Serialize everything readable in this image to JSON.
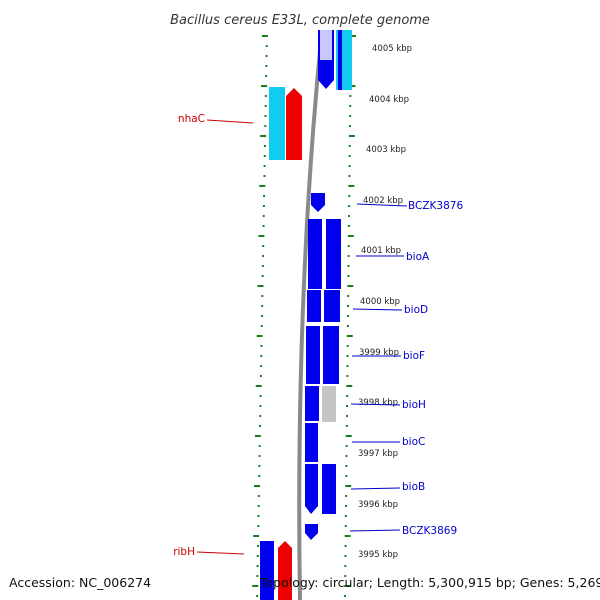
{
  "title": "Bacillus cereus E33L, complete genome",
  "footer": {
    "accession": "Accession: NC_006274",
    "summary": "Topology: circular; Length: 5,300,915 bp; Genes: 5,269"
  },
  "colors": {
    "backbone": "#8a8a8a",
    "tick": "#1a7f1a",
    "blue_gene": "#0000ee",
    "cyan_gene": "#12ccf0",
    "red_gene": "#ee0000",
    "grey_gene": "#c4c4c4",
    "label_blue": "#0000cc",
    "label_red": "#cc0000"
  },
  "kbp_labels": [
    "4005 kbp",
    "4004 kbp",
    "4003 kbp",
    "4002 kbp",
    "4001 kbp",
    "4000 kbp",
    "3999 kbp",
    "3998 kbp",
    "3997 kbp",
    "3996 kbp",
    "3995 kbp"
  ],
  "gene_labels": {
    "right": [
      "BCZK3876",
      "bioA",
      "bioD",
      "bioF",
      "bioH",
      "bioC",
      "bioB",
      "BCZK3869"
    ],
    "left": [
      "nhaC",
      "ribH"
    ]
  }
}
